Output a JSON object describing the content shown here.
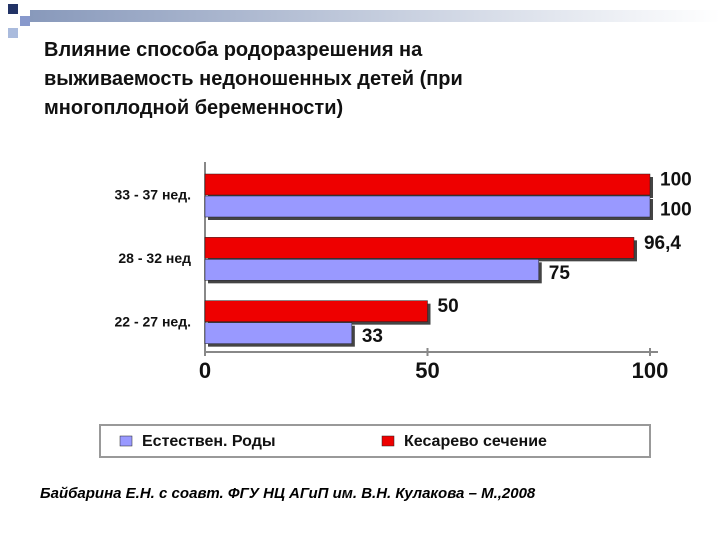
{
  "title": "Влияние способа родоразрешения на выживаемость недоношенных детей (при многоплодной беременности)",
  "chart_data": {
    "type": "hbar",
    "categories": [
      "33 - 37 нед.",
      "28 - 32 нед",
      "22 - 27 нед."
    ],
    "series": [
      {
        "name": "Естествен. Роды",
        "color": "#9999ff",
        "values": [
          100,
          75,
          33
        ]
      },
      {
        "name": "Кесарево сечение",
        "color": "#ee0000",
        "values": [
          100,
          96.4,
          50
        ],
        "value_labels": [
          "100",
          "96,4",
          "50"
        ]
      }
    ],
    "xlim": [
      0,
      100
    ],
    "xticks": [
      0,
      50,
      100
    ],
    "legend": "bottom"
  },
  "footnote": "Байбарина Е.Н. с соавт. ФГУ НЦ АГиП им. В.Н. Кулакова – М.,2008"
}
